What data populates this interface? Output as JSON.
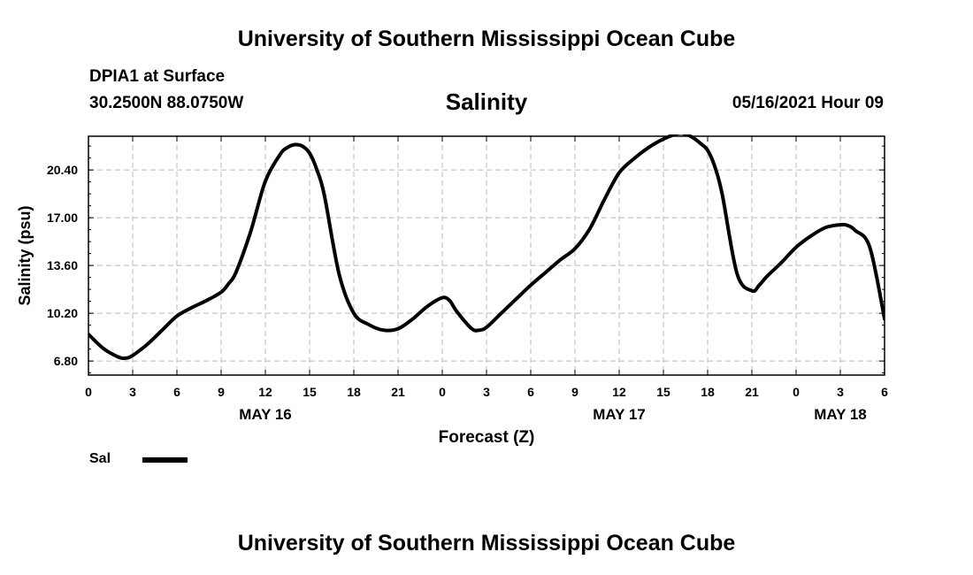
{
  "header": {
    "title": "University of Southern Mississippi Ocean Cube",
    "station": "DPIA1 at Surface",
    "coords": "30.2500N  88.0750W",
    "parameter": "Salinity",
    "datetime": "05/16/2021 Hour 09"
  },
  "footer": {
    "title": "University of Southern Mississippi Ocean Cube"
  },
  "legend": {
    "label": "Sal",
    "color": "#000000"
  },
  "chart_data": {
    "type": "line",
    "title": "Salinity",
    "xlabel": "Forecast (Z)",
    "ylabel": "Salinity (psu)",
    "xlim": [
      0,
      54
    ],
    "ylim": [
      5.8,
      22.8
    ],
    "y_ticks": [
      6.8,
      10.2,
      13.6,
      17.0,
      20.4
    ],
    "y_tick_labels": [
      "6.80",
      "10.20",
      "13.60",
      "17.00",
      "20.40"
    ],
    "x_ticks": [
      0,
      3,
      6,
      9,
      12,
      15,
      18,
      21,
      24,
      27,
      30,
      33,
      36,
      39,
      42,
      45,
      48,
      51,
      54
    ],
    "x_tick_labels": [
      "0",
      "3",
      "6",
      "9",
      "12",
      "15",
      "18",
      "21",
      "0",
      "3",
      "6",
      "9",
      "12",
      "15",
      "18",
      "21",
      "0",
      "3",
      "6"
    ],
    "date_labels": [
      {
        "x": 12,
        "label": "MAY 16"
      },
      {
        "x": 36,
        "label": "MAY 17"
      },
      {
        "x": 51,
        "label": "MAY 18"
      }
    ],
    "grid": true,
    "series": [
      {
        "name": "Sal",
        "color": "#000000",
        "x": [
          0,
          1,
          2,
          2.5,
          3,
          4,
          5,
          6,
          7,
          8,
          9,
          9.5,
          10,
          11,
          12,
          13,
          13.5,
          14,
          14.5,
          15,
          15.5,
          16,
          17,
          18,
          19,
          20,
          21,
          22,
          23,
          24,
          24.5,
          25,
          26,
          26.5,
          27,
          28,
          29,
          30,
          31,
          32,
          33,
          34,
          35,
          36,
          37,
          38,
          39,
          40,
          40.5,
          41,
          41.5,
          42,
          42.5,
          43,
          44,
          45,
          45.5,
          46,
          47,
          48,
          49,
          50,
          51,
          51.5,
          52,
          53,
          54
        ],
        "values": [
          8.7,
          7.7,
          7.1,
          7.0,
          7.2,
          8.0,
          9.0,
          10.0,
          10.6,
          11.1,
          11.7,
          12.3,
          13.1,
          16.0,
          19.6,
          21.5,
          22.0,
          22.2,
          22.1,
          21.6,
          20.4,
          18.6,
          13.0,
          10.2,
          9.4,
          9.0,
          9.1,
          9.8,
          10.7,
          11.3,
          11.1,
          10.3,
          9.1,
          9.0,
          9.2,
          10.2,
          11.2,
          12.2,
          13.1,
          14.0,
          14.8,
          16.2,
          18.3,
          20.2,
          21.2,
          22.0,
          22.6,
          23.0,
          22.95,
          22.7,
          22.3,
          21.8,
          20.6,
          18.6,
          13.0,
          11.8,
          12.2,
          12.8,
          13.8,
          14.9,
          15.7,
          16.3,
          16.5,
          16.45,
          16.1,
          14.9,
          9.8
        ]
      }
    ]
  }
}
